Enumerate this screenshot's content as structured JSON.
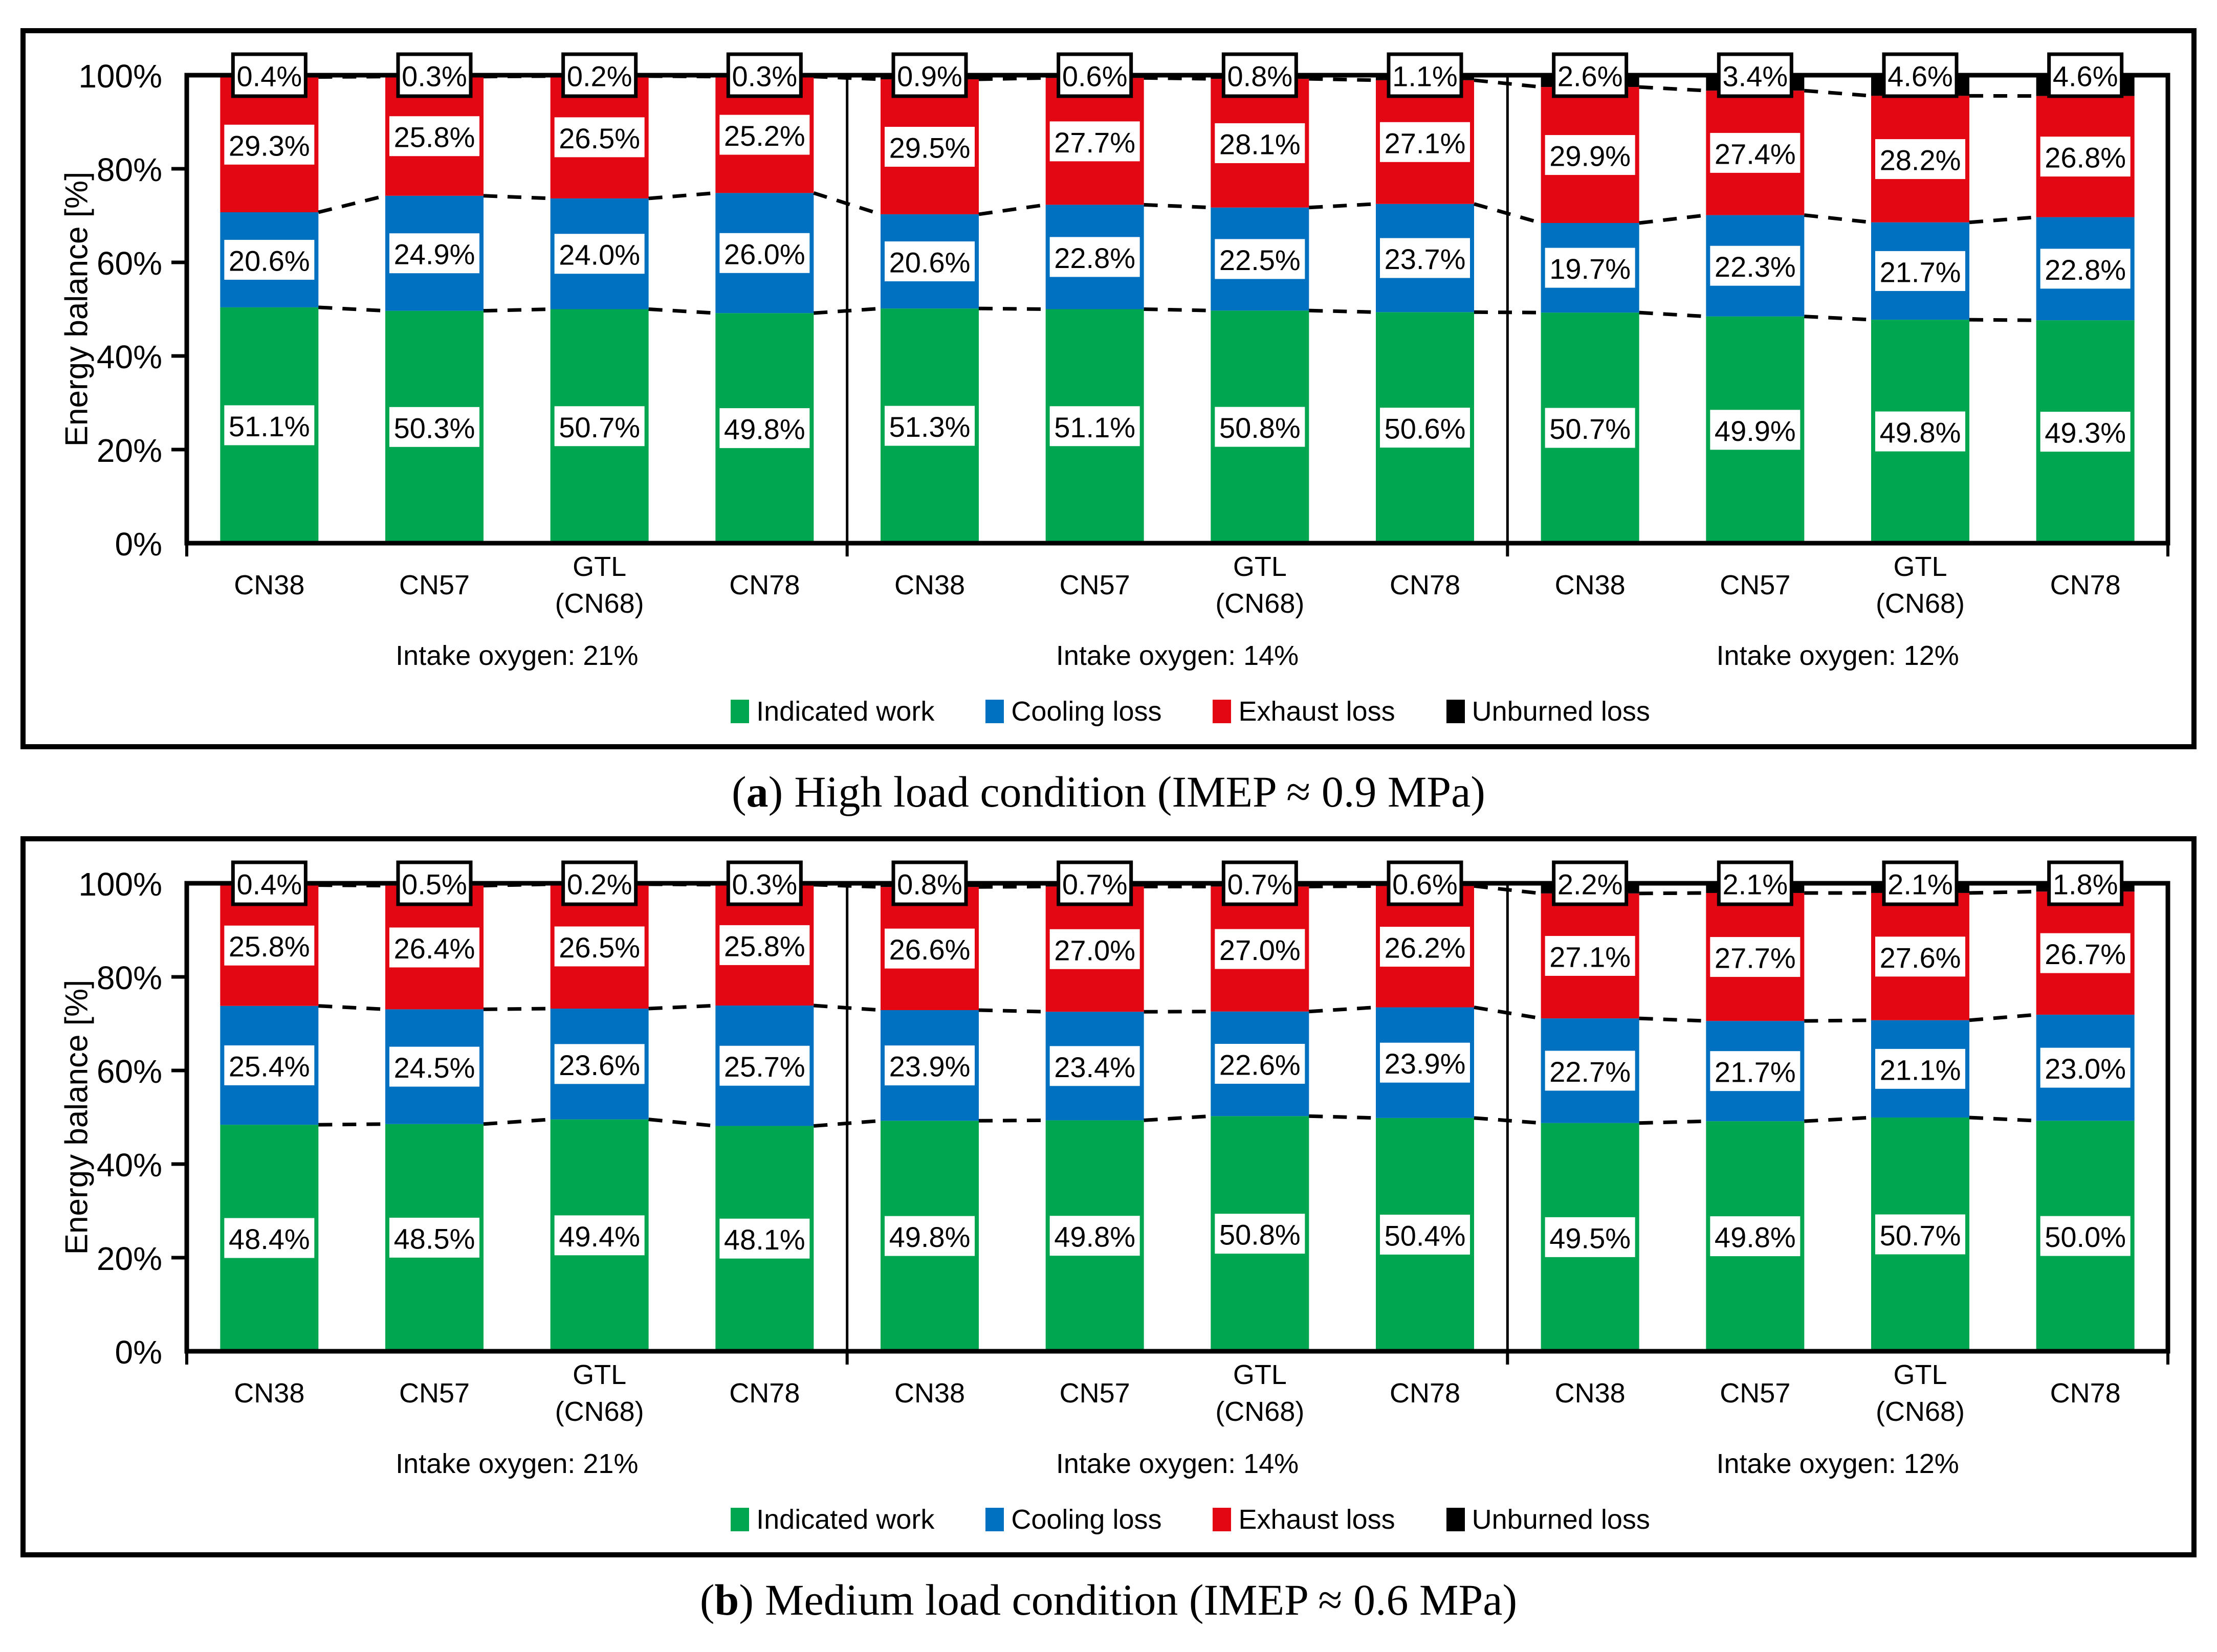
{
  "page": {
    "background": "#ffffff"
  },
  "legend": {
    "items": [
      {
        "key": "indicated_work",
        "label": "Indicated work",
        "color": "#00A650"
      },
      {
        "key": "cooling_loss",
        "label": "Cooling loss",
        "color": "#0070C0"
      },
      {
        "key": "exhaust_loss",
        "label": "Exhaust loss",
        "color": "#E30613"
      },
      {
        "key": "unburned_loss",
        "label": "Unburned loss",
        "color": "#000000"
      }
    ]
  },
  "chart_data": [
    {
      "id": "a",
      "type": "bar",
      "stacked": true,
      "ylabel": "Energy balance [%]",
      "ylim": [
        0,
        100
      ],
      "yticks": [
        "0%",
        "20%",
        "40%",
        "60%",
        "80%",
        "100%"
      ],
      "series_order": [
        "indicated_work",
        "cooling_loss",
        "exhaust_loss",
        "unburned_loss"
      ],
      "caption": {
        "open": "(",
        "letter": "a",
        "close": ")",
        "text": "High load condition (IMEP ≈ 0.9 MPa)"
      },
      "groups": [
        {
          "label": "Intake oxygen: 21%",
          "bars": [
            {
              "category": "CN38",
              "values": {
                "indicated_work": 51.1,
                "cooling_loss": 20.6,
                "exhaust_loss": 29.3,
                "unburned_loss": 0.4
              }
            },
            {
              "category": "CN57",
              "values": {
                "indicated_work": 50.3,
                "cooling_loss": 24.9,
                "exhaust_loss": 25.8,
                "unburned_loss": 0.3
              }
            },
            {
              "category": "GTL\n(CN68)",
              "values": {
                "indicated_work": 50.7,
                "cooling_loss": 24.0,
                "exhaust_loss": 26.5,
                "unburned_loss": 0.2
              }
            },
            {
              "category": "CN78",
              "values": {
                "indicated_work": 49.8,
                "cooling_loss": 26.0,
                "exhaust_loss": 25.2,
                "unburned_loss": 0.3
              }
            }
          ]
        },
        {
          "label": "Intake oxygen: 14%",
          "bars": [
            {
              "category": "CN38",
              "values": {
                "indicated_work": 51.3,
                "cooling_loss": 20.6,
                "exhaust_loss": 29.5,
                "unburned_loss": 0.9
              }
            },
            {
              "category": "CN57",
              "values": {
                "indicated_work": 51.1,
                "cooling_loss": 22.8,
                "exhaust_loss": 27.7,
                "unburned_loss": 0.6
              }
            },
            {
              "category": "GTL\n(CN68)",
              "values": {
                "indicated_work": 50.8,
                "cooling_loss": 22.5,
                "exhaust_loss": 28.1,
                "unburned_loss": 0.8
              }
            },
            {
              "category": "CN78",
              "values": {
                "indicated_work": 50.6,
                "cooling_loss": 23.7,
                "exhaust_loss": 27.1,
                "unburned_loss": 1.1
              }
            }
          ]
        },
        {
          "label": "Intake oxygen: 12%",
          "bars": [
            {
              "category": "CN38",
              "values": {
                "indicated_work": 50.7,
                "cooling_loss": 19.7,
                "exhaust_loss": 29.9,
                "unburned_loss": 2.6
              }
            },
            {
              "category": "CN57",
              "values": {
                "indicated_work": 49.9,
                "cooling_loss": 22.3,
                "exhaust_loss": 27.4,
                "unburned_loss": 3.4
              }
            },
            {
              "category": "GTL\n(CN68)",
              "values": {
                "indicated_work": 49.8,
                "cooling_loss": 21.7,
                "exhaust_loss": 28.2,
                "unburned_loss": 4.6
              }
            },
            {
              "category": "CN78",
              "values": {
                "indicated_work": 49.3,
                "cooling_loss": 22.8,
                "exhaust_loss": 26.8,
                "unburned_loss": 4.6
              }
            }
          ]
        }
      ]
    },
    {
      "id": "b",
      "type": "bar",
      "stacked": true,
      "ylabel": "Energy balance [%]",
      "ylim": [
        0,
        100
      ],
      "yticks": [
        "0%",
        "20%",
        "40%",
        "60%",
        "80%",
        "100%"
      ],
      "series_order": [
        "indicated_work",
        "cooling_loss",
        "exhaust_loss",
        "unburned_loss"
      ],
      "caption": {
        "open": "(",
        "letter": "b",
        "close": ")",
        "text": "Medium load condition (IMEP ≈ 0.6 MPa)"
      },
      "groups": [
        {
          "label": "Intake oxygen: 21%",
          "bars": [
            {
              "category": "CN38",
              "values": {
                "indicated_work": 48.4,
                "cooling_loss": 25.4,
                "exhaust_loss": 25.8,
                "unburned_loss": 0.4
              }
            },
            {
              "category": "CN57",
              "values": {
                "indicated_work": 48.5,
                "cooling_loss": 24.5,
                "exhaust_loss": 26.4,
                "unburned_loss": 0.5
              }
            },
            {
              "category": "GTL\n(CN68)",
              "values": {
                "indicated_work": 49.4,
                "cooling_loss": 23.6,
                "exhaust_loss": 26.5,
                "unburned_loss": 0.2
              }
            },
            {
              "category": "CN78",
              "values": {
                "indicated_work": 48.1,
                "cooling_loss": 25.7,
                "exhaust_loss": 25.8,
                "unburned_loss": 0.3
              }
            }
          ]
        },
        {
          "label": "Intake oxygen: 14%",
          "bars": [
            {
              "category": "CN38",
              "values": {
                "indicated_work": 49.8,
                "cooling_loss": 23.9,
                "exhaust_loss": 26.6,
                "unburned_loss": 0.8
              }
            },
            {
              "category": "CN57",
              "values": {
                "indicated_work": 49.8,
                "cooling_loss": 23.4,
                "exhaust_loss": 27.0,
                "unburned_loss": 0.7
              }
            },
            {
              "category": "GTL\n(CN68)",
              "values": {
                "indicated_work": 50.8,
                "cooling_loss": 22.6,
                "exhaust_loss": 27.0,
                "unburned_loss": 0.7
              }
            },
            {
              "category": "CN78",
              "values": {
                "indicated_work": 50.4,
                "cooling_loss": 23.9,
                "exhaust_loss": 26.2,
                "unburned_loss": 0.6
              }
            }
          ]
        },
        {
          "label": "Intake oxygen: 12%",
          "bars": [
            {
              "category": "CN38",
              "values": {
                "indicated_work": 49.5,
                "cooling_loss": 22.7,
                "exhaust_loss": 27.1,
                "unburned_loss": 2.2
              }
            },
            {
              "category": "CN57",
              "values": {
                "indicated_work": 49.8,
                "cooling_loss": 21.7,
                "exhaust_loss": 27.7,
                "unburned_loss": 2.1
              }
            },
            {
              "category": "GTL\n(CN68)",
              "values": {
                "indicated_work": 50.7,
                "cooling_loss": 21.1,
                "exhaust_loss": 27.6,
                "unburned_loss": 2.1
              }
            },
            {
              "category": "CN78",
              "values": {
                "indicated_work": 50.0,
                "cooling_loss": 23.0,
                "exhaust_loss": 26.7,
                "unburned_loss": 1.8
              }
            }
          ]
        }
      ]
    }
  ]
}
